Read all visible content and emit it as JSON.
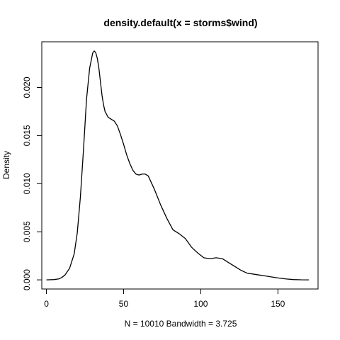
{
  "chart_data": {
    "type": "line",
    "title": "density.default(x = storms$wind)",
    "xlabel": "N = 10010   Bandwidth = 3.725",
    "ylabel": "Density",
    "xlim": [
      -3,
      176
    ],
    "ylim": [
      -0.00095,
      0.02475
    ],
    "x_ticks": [
      0,
      50,
      100,
      150
    ],
    "x_tick_labels": [
      "0",
      "50",
      "100",
      "150"
    ],
    "y_ticks": [
      0,
      0.005,
      0.01,
      0.015,
      0.02
    ],
    "y_tick_labels": [
      "0.000",
      "0.005",
      "0.010",
      "0.015",
      "0.020"
    ],
    "grid": false,
    "legend": "none",
    "line_color": "#000000",
    "series": [
      {
        "x": [
          0,
          5,
          8,
          10,
          12,
          15,
          18,
          20,
          22,
          24,
          26,
          28,
          30,
          31,
          32,
          33,
          34,
          35,
          36,
          37,
          38,
          40,
          42,
          44,
          46,
          48,
          50,
          52,
          54,
          56,
          58,
          60,
          62,
          64,
          66,
          68,
          70,
          74,
          78,
          82,
          86,
          90,
          94,
          98,
          102,
          106,
          110,
          114,
          118,
          122,
          126,
          130,
          134,
          138,
          142,
          146,
          150,
          155,
          160,
          165,
          170
        ],
        "y": [
          0,
          3e-05,
          0.0001,
          0.00025,
          0.0005,
          0.0012,
          0.0027,
          0.0049,
          0.0086,
          0.0135,
          0.0188,
          0.022,
          0.0236,
          0.0238,
          0.0236,
          0.023,
          0.022,
          0.0206,
          0.0192,
          0.0182,
          0.0175,
          0.0169,
          0.0167,
          0.0165,
          0.016,
          0.0151,
          0.0141,
          0.013,
          0.0121,
          0.0114,
          0.011,
          0.0109,
          0.011,
          0.011,
          0.0108,
          0.0101,
          0.0094,
          0.0078,
          0.0064,
          0.0052,
          0.0048,
          0.0043,
          0.0034,
          0.0028,
          0.0023,
          0.0022,
          0.0023,
          0.0022,
          0.0018,
          0.0014,
          0.001,
          0.0007,
          0.0006,
          0.0005,
          0.0004,
          0.0003,
          0.0002,
          0.0001,
          3e-05,
          5e-06,
          0
        ]
      }
    ]
  }
}
